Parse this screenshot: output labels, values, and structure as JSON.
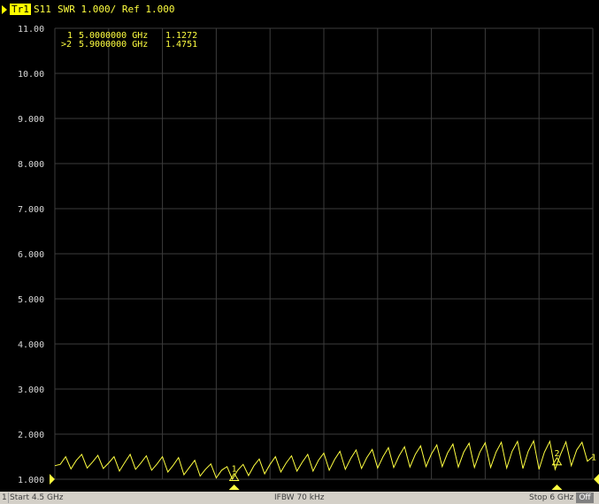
{
  "header": {
    "trace_tab": "Tr1",
    "measurement": "S11",
    "format_scale": "SWR 1.000/ Ref 1.000"
  },
  "marker_table": [
    {
      "label": "1",
      "freq": "5.0000000 GHz",
      "value": "1.1272"
    },
    {
      "label": ">2",
      "freq": "5.9000000 GHz",
      "value": "1.4751"
    }
  ],
  "status_bar": {
    "channel": "1",
    "start": "Start 4.5 GHz",
    "ifbw": "IFBW 70 kHz",
    "stop": "Stop 6 GHz",
    "off_button": "Off"
  },
  "colors": {
    "background": "#000000",
    "grid": "#3c3c3c",
    "trace": "#ffff40",
    "axis_text": "#d8d8d8"
  },
  "chart_data": {
    "type": "line",
    "title": "",
    "xlabel": "",
    "ylabel": "",
    "xlim": [
      4.5,
      6.0
    ],
    "ylim": [
      1.0,
      11.0
    ],
    "x_unit": "GHz",
    "y_ticks": [
      "11.00",
      "10.00",
      "9.000",
      "8.000",
      "7.000",
      "6.000",
      "5.000",
      "4.000",
      "3.000",
      "2.000",
      "1.000"
    ],
    "x_grid_divisions": 10,
    "grid": true,
    "series": [
      {
        "x": [
          4.5,
          4.515,
          4.53,
          4.545,
          4.56,
          4.575,
          4.59,
          4.605,
          4.62,
          4.635,
          4.65,
          4.665,
          4.68,
          4.695,
          4.71,
          4.725,
          4.74,
          4.755,
          4.77,
          4.785,
          4.8,
          4.815,
          4.83,
          4.845,
          4.86,
          4.875,
          4.89,
          4.905,
          4.92,
          4.935,
          4.95,
          4.965,
          4.98,
          4.995,
          5.01,
          5.025,
          5.04,
          5.055,
          5.07,
          5.085,
          5.1,
          5.115,
          5.13,
          5.145,
          5.16,
          5.175,
          5.19,
          5.205,
          5.22,
          5.235,
          5.25,
          5.265,
          5.28,
          5.295,
          5.31,
          5.325,
          5.34,
          5.355,
          5.37,
          5.385,
          5.4,
          5.415,
          5.43,
          5.445,
          5.46,
          5.475,
          5.49,
          5.505,
          5.52,
          5.535,
          5.55,
          5.565,
          5.58,
          5.595,
          5.61,
          5.625,
          5.64,
          5.655,
          5.67,
          5.685,
          5.7,
          5.715,
          5.73,
          5.745,
          5.76,
          5.775,
          5.79,
          5.805,
          5.82,
          5.835,
          5.85,
          5.865,
          5.88,
          5.895,
          5.91,
          5.925,
          5.94,
          5.955,
          5.97,
          5.985,
          6.0
        ],
        "y": [
          1.3,
          1.33,
          1.5,
          1.23,
          1.42,
          1.55,
          1.25,
          1.38,
          1.53,
          1.24,
          1.36,
          1.5,
          1.18,
          1.37,
          1.55,
          1.22,
          1.36,
          1.52,
          1.2,
          1.34,
          1.5,
          1.16,
          1.31,
          1.48,
          1.1,
          1.26,
          1.42,
          1.07,
          1.22,
          1.34,
          1.03,
          1.2,
          1.28,
          1.0,
          1.2,
          1.33,
          1.08,
          1.3,
          1.45,
          1.12,
          1.33,
          1.5,
          1.16,
          1.36,
          1.52,
          1.18,
          1.38,
          1.55,
          1.18,
          1.42,
          1.58,
          1.2,
          1.44,
          1.62,
          1.22,
          1.46,
          1.65,
          1.24,
          1.48,
          1.66,
          1.25,
          1.5,
          1.7,
          1.26,
          1.52,
          1.72,
          1.27,
          1.55,
          1.74,
          1.28,
          1.56,
          1.76,
          1.28,
          1.58,
          1.78,
          1.27,
          1.6,
          1.8,
          1.26,
          1.6,
          1.81,
          1.26,
          1.6,
          1.82,
          1.25,
          1.62,
          1.84,
          1.24,
          1.62,
          1.85,
          1.22,
          1.6,
          1.84,
          1.22,
          1.55,
          1.83,
          1.3,
          1.65,
          1.82,
          1.4,
          1.5
        ]
      }
    ],
    "markers": [
      {
        "label": "1",
        "x": 5.0,
        "y": 1.1272
      },
      {
        "label": "2",
        "x": 5.9,
        "y": 1.4751
      }
    ]
  }
}
